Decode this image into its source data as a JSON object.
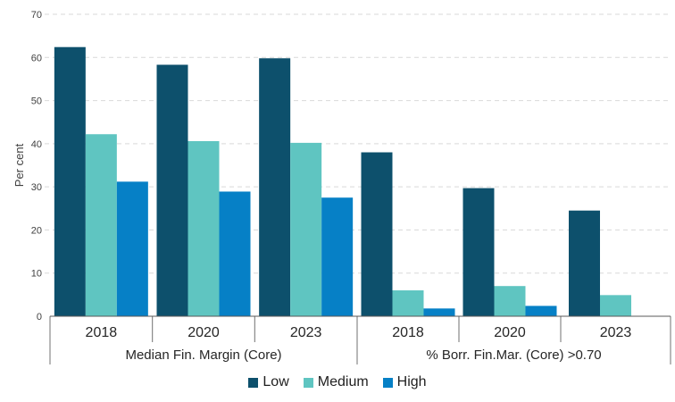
{
  "chart_data": {
    "type": "bar",
    "title": "",
    "ylabel": "Per cent",
    "xlabel": "",
    "ylim": [
      0,
      70
    ],
    "yticks": [
      0,
      10,
      20,
      30,
      40,
      50,
      60,
      70
    ],
    "grid": "horizontal-dashed",
    "legend_position": "bottom",
    "series": [
      {
        "name": "Low",
        "color": "#0d506c"
      },
      {
        "name": "Medium",
        "color": "#5fc5c1"
      },
      {
        "name": "High",
        "color": "#0680c6"
      }
    ],
    "panels": [
      {
        "label": "Median Fin. Margin (Core)",
        "categories": [
          "2018",
          "2020",
          "2023"
        ],
        "values": {
          "Low": [
            62.4,
            58.3,
            59.8
          ],
          "Medium": [
            42.2,
            40.6,
            40.2
          ],
          "High": [
            31.2,
            28.9,
            27.5
          ]
        }
      },
      {
        "label": "% Borr. Fin.Mar. (Core) >0.70",
        "categories": [
          "2018",
          "2020",
          "2023"
        ],
        "values": {
          "Low": [
            38.0,
            29.7,
            24.5
          ],
          "Medium": [
            6.0,
            7.0,
            4.9
          ],
          "High": [
            1.8,
            2.4,
            0
          ]
        }
      }
    ]
  },
  "style": {
    "background": "#ffffff",
    "grid_color": "#d9d9d9",
    "baseline_color": "#595959",
    "box_line_color": "#707070",
    "tick_text_color": "#404040",
    "label_text_color": "#262626"
  }
}
